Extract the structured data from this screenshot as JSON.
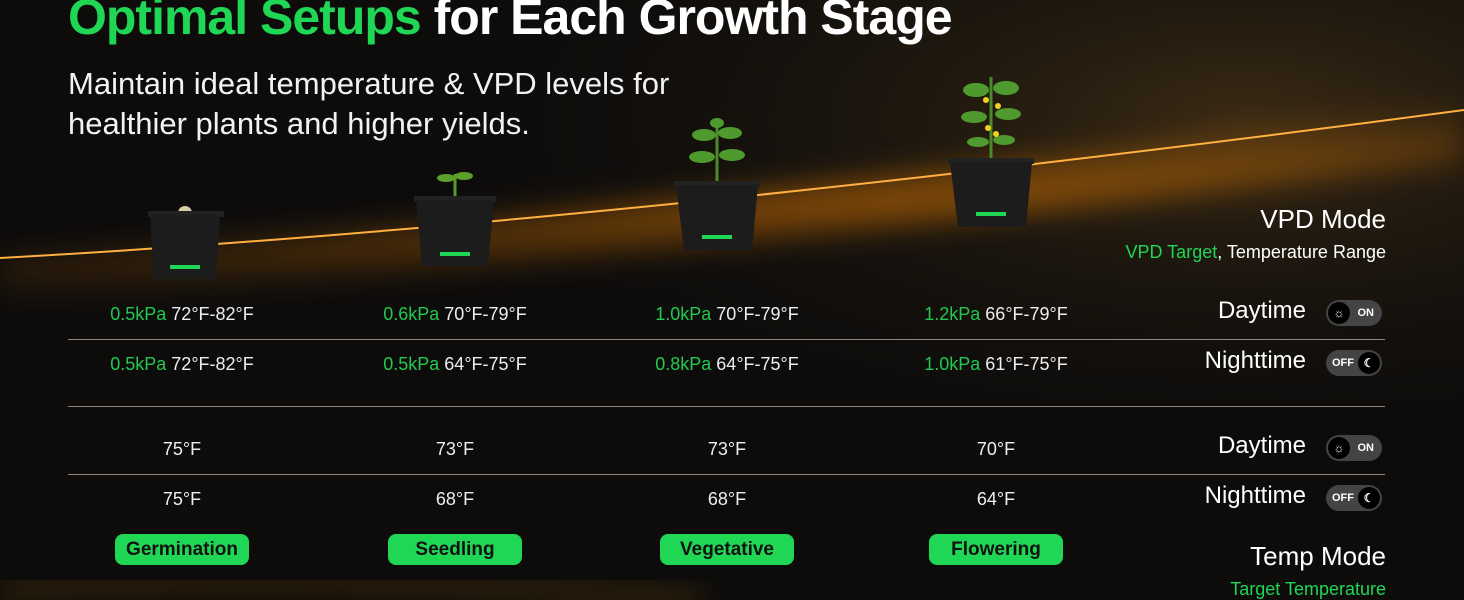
{
  "header": {
    "title_green": "Optimal Setups",
    "title_white": " for Each Growth Stage",
    "subtitle_line1": "Maintain ideal temperature & VPD levels for",
    "subtitle_line2": "healthier plants and higher yields."
  },
  "vpd_mode": {
    "title": "VPD Mode",
    "sub_green": "VPD Target",
    "sub_rest": ", Temperature Range"
  },
  "temp_mode": {
    "title": "Temp Mode",
    "sub_green": "Target Temperature"
  },
  "row_labels": {
    "day": "Daytime",
    "night": "Nighttime",
    "on": "ON",
    "off": "OFF"
  },
  "stages": [
    {
      "name": "Germination",
      "vpd_day": "0.5kPa",
      "range_day": " 72°F-82°F",
      "vpd_night": "0.5kPa",
      "range_night": " 72°F-82°F",
      "temp_day": "75°F",
      "temp_night": "75°F"
    },
    {
      "name": "Seedling",
      "vpd_day": "0.6kPa",
      "range_day": " 70°F-79°F",
      "vpd_night": "0.5kPa",
      "range_night": " 64°F-75°F",
      "temp_day": "73°F",
      "temp_night": "68°F"
    },
    {
      "name": "Vegetative",
      "vpd_day": "1.0kPa",
      "range_day": " 70°F-79°F",
      "vpd_night": "0.8kPa",
      "range_night": " 64°F-75°F",
      "temp_day": "73°F",
      "temp_night": "68°F"
    },
    {
      "name": "Flowering",
      "vpd_day": "1.2kPa",
      "range_day": " 66°F-79°F",
      "vpd_night": "1.0kPa",
      "range_night": " 61°F-75°F",
      "temp_day": "70°F",
      "temp_night": "64°F"
    }
  ],
  "colors": {
    "accent": "#1fd655",
    "glow": "#ff8a00"
  }
}
